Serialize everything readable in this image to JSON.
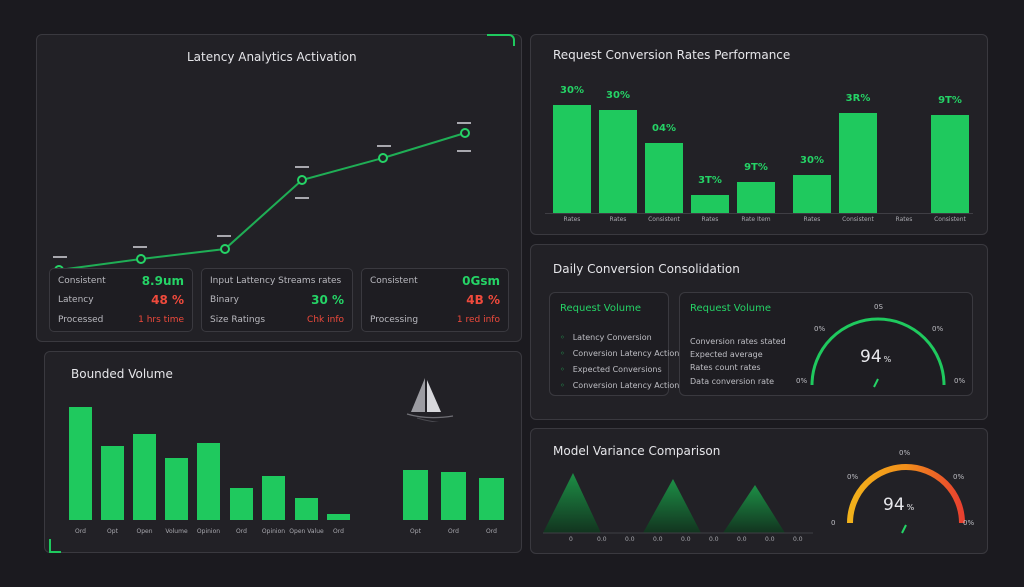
{
  "colors": {
    "accent": "#25d366",
    "red": "#ef4a3c",
    "bg": "#1b1a1f",
    "panel": "#222126"
  },
  "panel1": {
    "title": "Latency Analytics Activation",
    "line_points": [
      {
        "value": "—",
        "y": 4
      },
      {
        "value": "—",
        "y": 5.5
      },
      {
        "value": "—",
        "y": 6
      },
      {
        "value": "—",
        "y": 14
      },
      {
        "value": "—",
        "y": 16.5
      },
      {
        "value": "—",
        "y": 19
      }
    ],
    "stats": [
      {
        "rows": [
          {
            "label": "Consistent",
            "value": "8.9um",
            "color": "green"
          },
          {
            "label": "Latency",
            "value": "48 %",
            "color": "red"
          },
          {
            "label": "Processed",
            "value": "1 hrs time",
            "color": "red"
          }
        ]
      },
      {
        "rows": [
          {
            "label": "Input Lattency Streams rates",
            "value": "",
            "color": "green"
          },
          {
            "label": "Binary",
            "value": "30 %",
            "color": "green"
          },
          {
            "label": "Size Ratings",
            "value": "Chk info",
            "color": "red"
          }
        ]
      },
      {
        "rows": [
          {
            "label": "Consistent",
            "value": "0Gsm",
            "color": "green"
          },
          {
            "label": "",
            "value": "4B %",
            "color": "red"
          },
          {
            "label": "Processing",
            "value": "1 red info",
            "color": "red"
          }
        ]
      }
    ]
  },
  "panel2": {
    "title": "Request Conversion Rates Performance",
    "bars": [
      {
        "label": "Rates",
        "value": "30%",
        "height": 108
      },
      {
        "label": "Rates",
        "value": "30%",
        "height": 103
      },
      {
        "label": "Consistent",
        "value": "04%",
        "height": 70
      },
      {
        "label": "Rates",
        "value": "3T%",
        "height": 18
      },
      {
        "label": "Rate Item",
        "value": "9T%",
        "height": 31
      },
      {
        "label": "Rates",
        "value": "30%",
        "height": 38
      },
      {
        "label": "Consistent",
        "value": "3R%",
        "height": 100
      },
      {
        "label": "Rates",
        "value": "",
        "height": 0
      },
      {
        "label": "Consistent",
        "value": "9T%",
        "height": 98
      }
    ]
  },
  "panel3": {
    "title": "Bounded Volume",
    "bars": [
      {
        "label": "Ord",
        "height": 113
      },
      {
        "label": "Opt",
        "height": 74
      },
      {
        "label": "Open",
        "height": 86
      },
      {
        "label": "Volume",
        "height": 62
      },
      {
        "label": "Opinion",
        "height": 77
      },
      {
        "label": "Ord",
        "height": 32
      },
      {
        "label": "Opinion",
        "height": 44
      },
      {
        "label": "Open Value",
        "height": 22
      },
      {
        "label": "Ord",
        "height": 6
      },
      {
        "label": "Opt",
        "height": 50
      },
      {
        "label": "Ord",
        "height": 48
      },
      {
        "label": "Ord",
        "height": 42
      }
    ]
  },
  "panel4": {
    "title": "Daily Conversion Consolidation",
    "sub_left": {
      "title": "Request Volume",
      "items": [
        "Latency Conversion",
        "Conversion Latency Actions",
        "Expected Conversions",
        "Conversion Latency Actions"
      ]
    },
    "sub_right": {
      "title": "Request Volume",
      "lines": [
        "Conversion rates stated",
        "Expected average",
        "Rates count rates",
        "Data conversion rate"
      ],
      "gauge_value": "94",
      "gauge_unit": "%",
      "tick_top": "0S",
      "tick_left": "0%",
      "tick_right": "0%",
      "tick_bl": "0%",
      "tick_br": "0%"
    }
  },
  "panel5": {
    "title": "Model Variance Comparison",
    "tri_labels": [
      "0",
      "0.0",
      "0.0",
      "0.0",
      "0.0",
      "0.0",
      "0.0",
      "0.0",
      "0.0"
    ],
    "gauge_value": "94",
    "gauge_unit": "%",
    "tick_top": "0%",
    "tick_left": "0%",
    "tick_right": "0%",
    "tick_bl": "0",
    "tick_br": "0%"
  }
}
